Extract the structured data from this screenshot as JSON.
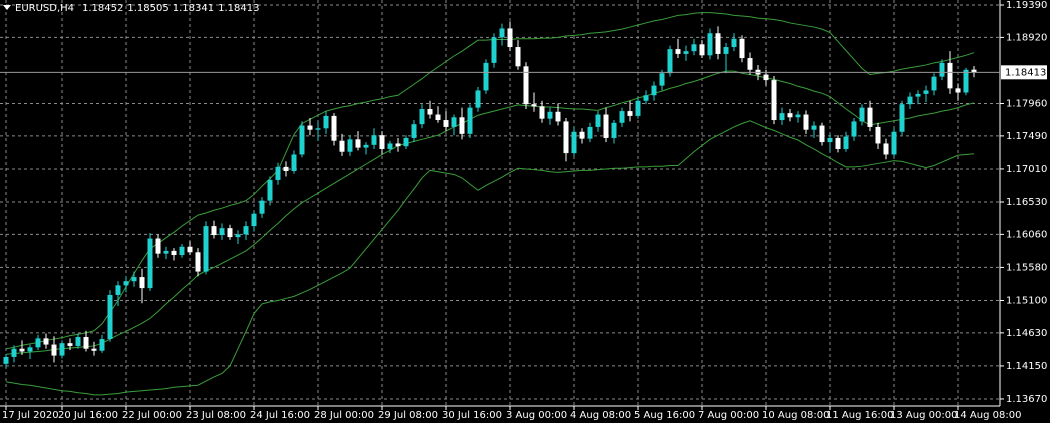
{
  "chart_data": {
    "type": "candlestick",
    "title": "EURUSD,H4",
    "categories": [
      "17 Jul 2020",
      null,
      null,
      null,
      null,
      null,
      null,
      "20 Jul 16:00",
      null,
      null,
      null,
      null,
      null,
      null,
      null,
      "22 Jul 00:00",
      null,
      null,
      null,
      null,
      null,
      null,
      null,
      "23 Jul 08:00",
      null,
      null,
      null,
      null,
      null,
      null,
      null,
      "24 Jul 16:00",
      null,
      null,
      null,
      null,
      null,
      null,
      null,
      "28 Jul 00:00",
      null,
      null,
      null,
      null,
      null,
      null,
      null,
      "29 Jul 08:00",
      null,
      null,
      null,
      null,
      null,
      null,
      null,
      "30 Jul 16:00",
      null,
      null,
      null,
      null,
      null,
      null,
      null,
      "3 Aug 00:00",
      null,
      null,
      null,
      null,
      null,
      null,
      null,
      "4 Aug 08:00",
      null,
      null,
      null,
      null,
      null,
      null,
      null,
      "5 Aug 16:00",
      null,
      null,
      null,
      null,
      null,
      null,
      null,
      "7 Aug 00:00",
      null,
      null,
      null,
      null,
      null,
      null,
      null,
      "10 Aug 08:00",
      null,
      null,
      null,
      null,
      null,
      null,
      null,
      "11 Aug 16:00",
      null,
      null,
      null,
      null,
      null,
      null,
      null,
      "13 Aug 00:00",
      null,
      null,
      null,
      null,
      null,
      null,
      null,
      "14 Aug 08:00",
      null,
      null
    ],
    "open": [
      1.1418,
      1.1428,
      1.144,
      1.1436,
      1.1442,
      1.1455,
      1.1446,
      1.143,
      1.1448,
      1.1444,
      1.1457,
      1.144,
      1.1437,
      1.1454,
      1.1518,
      1.1532,
      1.1538,
      1.1544,
      1.1528,
      1.16,
      1.1578,
      1.1582,
      1.1576,
      1.1588,
      1.158,
      1.1552,
      1.1618,
      1.1605,
      1.1615,
      1.1602,
      1.1606,
      1.1618,
      1.1636,
      1.1655,
      1.1685,
      1.1704,
      1.1698,
      1.1722,
      1.1764,
      1.1758,
      1.176,
      1.1778,
      1.1742,
      1.1726,
      1.1744,
      1.1732,
      1.1736,
      1.175,
      1.173,
      1.1738,
      1.1734,
      1.1746,
      1.1766,
      1.1788,
      1.178,
      1.1772,
      1.1762,
      1.1776,
      1.1752,
      1.179,
      1.1815,
      1.1855,
      1.1892,
      1.1905,
      1.1878,
      1.185,
      1.1795,
      1.1792,
      1.1774,
      1.1784,
      1.177,
      1.1724,
      1.1755,
      1.1745,
      1.1762,
      1.178,
      1.1746,
      1.1768,
      1.1785,
      1.1778,
      1.18,
      1.1808,
      1.1822,
      1.184,
      1.1875,
      1.1868,
      1.1872,
      1.1882,
      1.1866,
      1.1898,
      1.1868,
      1.1878,
      1.189,
      1.1862,
      1.1845,
      1.1838,
      1.183,
      1.1772,
      1.1782,
      1.1776,
      1.178,
      1.1758,
      1.1764,
      1.174,
      1.1746,
      1.173,
      1.1748,
      1.177,
      1.179,
      1.1762,
      1.1738,
      1.1722,
      1.1755,
      1.1795,
      1.1806,
      1.181,
      1.1815,
      1.1835,
      1.1855,
      1.1818,
      1.1812,
      1.18452
    ],
    "high": [
      1.1432,
      1.1445,
      1.1452,
      1.1446,
      1.146,
      1.1462,
      1.1458,
      1.1452,
      1.1455,
      1.1462,
      1.1466,
      1.145,
      1.146,
      1.1525,
      1.1538,
      1.1545,
      1.1552,
      1.1556,
      1.1608,
      1.1606,
      1.1588,
      1.1586,
      1.1592,
      1.1596,
      1.1586,
      1.1625,
      1.1626,
      1.1622,
      1.162,
      1.1612,
      1.1625,
      1.164,
      1.166,
      1.169,
      1.171,
      1.1712,
      1.1728,
      1.177,
      1.1775,
      1.177,
      1.1785,
      1.1782,
      1.1752,
      1.175,
      1.1756,
      1.174,
      1.176,
      1.1756,
      1.1742,
      1.1746,
      1.175,
      1.1772,
      1.1795,
      1.18,
      1.1792,
      1.1785,
      1.178,
      1.179,
      1.1795,
      1.182,
      1.186,
      1.1898,
      1.1912,
      1.1915,
      1.1888,
      1.1856,
      1.1812,
      1.18,
      1.179,
      1.1796,
      1.1775,
      1.1762,
      1.176,
      1.1768,
      1.1785,
      1.179,
      1.1772,
      1.179,
      1.18,
      1.1805,
      1.1815,
      1.1828,
      1.1845,
      1.188,
      1.189,
      1.188,
      1.189,
      1.1888,
      1.1905,
      1.1908,
      1.1884,
      1.1898,
      1.1895,
      1.187,
      1.1852,
      1.1845,
      1.1836,
      1.179,
      1.1788,
      1.1785,
      1.1786,
      1.177,
      1.1768,
      1.1752,
      1.175,
      1.1755,
      1.1775,
      1.1795,
      1.18,
      1.1768,
      1.1745,
      1.176,
      1.18,
      1.1812,
      1.1815,
      1.1822,
      1.184,
      1.186,
      1.1872,
      1.1825,
      1.1848,
      1.18505
    ],
    "low": [
      1.1412,
      1.142,
      1.1431,
      1.1425,
      1.1438,
      1.144,
      1.142,
      1.1426,
      1.1438,
      1.144,
      1.1436,
      1.143,
      1.1434,
      1.145,
      1.1502,
      1.1522,
      1.153,
      1.1506,
      1.1524,
      1.1572,
      1.157,
      1.1568,
      1.1572,
      1.1576,
      1.1545,
      1.1548,
      1.16,
      1.1598,
      1.1598,
      1.1592,
      1.1598,
      1.161,
      1.163,
      1.1648,
      1.1678,
      1.169,
      1.1694,
      1.1718,
      1.175,
      1.1742,
      1.1752,
      1.1735,
      1.172,
      1.172,
      1.1728,
      1.1722,
      1.173,
      1.1722,
      1.1724,
      1.1726,
      1.173,
      1.174,
      1.176,
      1.1774,
      1.1768,
      1.1756,
      1.175,
      1.1744,
      1.1746,
      1.1784,
      1.181,
      1.1848,
      1.188,
      1.1872,
      1.1845,
      1.1788,
      1.1784,
      1.1768,
      1.1765,
      1.1764,
      1.1712,
      1.172,
      1.1738,
      1.174,
      1.1755,
      1.174,
      1.1738,
      1.1762,
      1.177,
      1.1774,
      1.1795,
      1.18,
      1.1815,
      1.1835,
      1.1862,
      1.1858,
      1.1866,
      1.1862,
      1.186,
      1.186,
      1.184,
      1.1872,
      1.1856,
      1.1838,
      1.183,
      1.1822,
      1.1766,
      1.1765,
      1.177,
      1.1768,
      1.1752,
      1.1746,
      1.1735,
      1.1726,
      1.1725,
      1.1726,
      1.1742,
      1.1764,
      1.1756,
      1.173,
      1.1715,
      1.1718,
      1.175,
      1.1788,
      1.1795,
      1.1798,
      1.1808,
      1.183,
      1.181,
      1.18,
      1.1808,
      1.18341
    ],
    "close": [
      1.1428,
      1.144,
      1.1436,
      1.1442,
      1.1455,
      1.1446,
      1.143,
      1.1448,
      1.1444,
      1.1457,
      1.144,
      1.1437,
      1.1454,
      1.1518,
      1.1532,
      1.1538,
      1.1544,
      1.1528,
      1.16,
      1.1578,
      1.1582,
      1.1576,
      1.1588,
      1.158,
      1.1552,
      1.1618,
      1.1605,
      1.1615,
      1.1602,
      1.1606,
      1.1618,
      1.1636,
      1.1655,
      1.1685,
      1.1704,
      1.1698,
      1.1722,
      1.1764,
      1.1758,
      1.176,
      1.1778,
      1.1742,
      1.1726,
      1.1744,
      1.1732,
      1.1736,
      1.175,
      1.173,
      1.1738,
      1.1734,
      1.1746,
      1.1766,
      1.1788,
      1.178,
      1.1772,
      1.1762,
      1.1776,
      1.1752,
      1.179,
      1.1815,
      1.1855,
      1.1892,
      1.1905,
      1.1878,
      1.185,
      1.1795,
      1.1792,
      1.1774,
      1.1784,
      1.177,
      1.1724,
      1.1755,
      1.1745,
      1.1762,
      1.178,
      1.1746,
      1.1768,
      1.1785,
      1.1778,
      1.18,
      1.1808,
      1.1822,
      1.184,
      1.1875,
      1.1868,
      1.1872,
      1.1882,
      1.1866,
      1.1898,
      1.1868,
      1.1878,
      1.189,
      1.1862,
      1.1845,
      1.1838,
      1.183,
      1.1772,
      1.1782,
      1.1776,
      1.178,
      1.1758,
      1.1764,
      1.174,
      1.1746,
      1.173,
      1.1748,
      1.177,
      1.179,
      1.1762,
      1.1738,
      1.1722,
      1.1755,
      1.1795,
      1.1806,
      1.181,
      1.1815,
      1.1835,
      1.1855,
      1.1818,
      1.1812,
      1.1845,
      1.18413
    ],
    "up_color": "#1fd1cf",
    "down_color": "#ffffff",
    "series": [
      {
        "color": "#3a9f3a",
        "values": [
          1.144,
          1.1442,
          1.1445,
          1.1447,
          1.1449,
          1.1452,
          1.1454,
          1.1456,
          1.1459,
          1.1461,
          1.1463,
          1.1466,
          1.1476,
          1.1493,
          1.151,
          1.153,
          1.1549,
          1.1568,
          1.1585,
          1.1593,
          1.1601,
          1.1609,
          1.1618,
          1.1626,
          1.1634,
          1.1637,
          1.1641,
          1.1644,
          1.1648,
          1.1651,
          1.1655,
          1.1664,
          1.1676,
          1.1687,
          1.1699,
          1.1725,
          1.1751,
          1.1767,
          1.1773,
          1.1779,
          1.1785,
          1.1788,
          1.1791,
          1.1793,
          1.1796,
          1.1798,
          1.1801,
          1.1803,
          1.1806,
          1.1808,
          1.1816,
          1.1824,
          1.1832,
          1.1841,
          1.1849,
          1.1857,
          1.1865,
          1.1872,
          1.188,
          1.1888,
          1.1888,
          1.1889,
          1.1889,
          1.1889,
          1.189,
          1.189,
          1.189,
          1.1891,
          1.1891,
          1.1892,
          1.1894,
          1.1895,
          1.1896,
          1.1898,
          1.1899,
          1.19,
          1.1902,
          1.1904,
          1.1907,
          1.191,
          1.1913,
          1.1916,
          1.1918,
          1.1921,
          1.1924,
          1.1925,
          1.1927,
          1.1928,
          1.1928,
          1.1927,
          1.1926,
          1.1924,
          1.1923,
          1.1922,
          1.192,
          1.1919,
          1.1918,
          1.1916,
          1.1913,
          1.1911,
          1.1909,
          1.1907,
          1.1904,
          1.1899,
          1.1886,
          1.1873,
          1.186,
          1.1847,
          1.1838,
          1.184,
          1.1841,
          1.1843,
          1.1846,
          1.1848,
          1.185,
          1.1852,
          1.1855,
          1.1857,
          1.186,
          1.1863,
          1.1866,
          1.187
        ]
      },
      {
        "color": "#3a9f3a",
        "values": [
          1.1432,
          1.1433,
          1.1434,
          1.1435,
          1.1436,
          1.1437,
          1.1439,
          1.144,
          1.1441,
          1.1442,
          1.1443,
          1.1444,
          1.1448,
          1.1454,
          1.146,
          1.1465,
          1.1471,
          1.1477,
          1.1484,
          1.1494,
          1.1505,
          1.1515,
          1.1526,
          1.1536,
          1.1547,
          1.1553,
          1.1558,
          1.1564,
          1.157,
          1.1576,
          1.1582,
          1.1591,
          1.1601,
          1.1612,
          1.1622,
          1.1633,
          1.1643,
          1.1652,
          1.1659,
          1.1666,
          1.1673,
          1.168,
          1.1687,
          1.1694,
          1.1701,
          1.1708,
          1.1715,
          1.1722,
          1.1728,
          1.1735,
          1.1738,
          1.1741,
          1.1744,
          1.1747,
          1.175,
          1.1756,
          1.1762,
          1.1767,
          1.1773,
          1.1779,
          1.1782,
          1.1785,
          1.1788,
          1.1791,
          1.1794,
          1.1793,
          1.1792,
          1.1791,
          1.1791,
          1.179,
          1.1789,
          1.1788,
          1.1788,
          1.1787,
          1.1786,
          1.179,
          1.1793,
          1.1797,
          1.18,
          1.1804,
          1.1807,
          1.1811,
          1.1814,
          1.1818,
          1.1821,
          1.1825,
          1.1828,
          1.1832,
          1.1836,
          1.184,
          1.1843,
          1.1843,
          1.184,
          1.1838,
          1.1836,
          1.1833,
          1.1831,
          1.1828,
          1.1825,
          1.1821,
          1.1818,
          1.1814,
          1.1811,
          1.1806,
          1.1797,
          1.1788,
          1.178,
          1.1771,
          1.1765,
          1.1767,
          1.1769,
          1.1771,
          1.1773,
          1.1775,
          1.1778,
          1.178,
          1.1782,
          1.1785,
          1.1787,
          1.179,
          1.1794,
          1.1797
        ]
      },
      {
        "color": "#3a9f3a",
        "values": [
          1.1392,
          1.139,
          1.1388,
          1.1387,
          1.1385,
          1.1383,
          1.1381,
          1.1379,
          1.1378,
          1.1376,
          1.1375,
          1.1373,
          1.1373,
          1.1374,
          1.1375,
          1.1377,
          1.1378,
          1.1379,
          1.138,
          1.1381,
          1.1382,
          1.1384,
          1.1385,
          1.1386,
          1.1387,
          1.1393,
          1.1399,
          1.1404,
          1.1415,
          1.144,
          1.1465,
          1.1491,
          1.1505,
          1.1508,
          1.151,
          1.1513,
          1.1516,
          1.1521,
          1.1526,
          1.1532,
          1.1538,
          1.1544,
          1.155,
          1.1557,
          1.1571,
          1.1585,
          1.1599,
          1.1613,
          1.1627,
          1.1641,
          1.1657,
          1.1672,
          1.1688,
          1.1699,
          1.1697,
          1.1695,
          1.1693,
          1.1688,
          1.1679,
          1.167,
          1.1677,
          1.1683,
          1.1689,
          1.1696,
          1.1702,
          1.1701,
          1.17,
          1.1699,
          1.1697,
          1.1696,
          1.1697,
          1.1698,
          1.1699,
          1.1699,
          1.17,
          1.1701,
          1.1702,
          1.1702,
          1.1703,
          1.1704,
          1.1704,
          1.1705,
          1.1705,
          1.1706,
          1.1706,
          1.1716,
          1.1726,
          1.1735,
          1.1744,
          1.175,
          1.1756,
          1.1762,
          1.1767,
          1.1771,
          1.1766,
          1.1761,
          1.1757,
          1.1752,
          1.1747,
          1.1743,
          1.1736,
          1.173,
          1.1723,
          1.1717,
          1.171,
          1.1704,
          1.1704,
          1.1705,
          1.1707,
          1.1709,
          1.1711,
          1.1713,
          1.1712,
          1.1709,
          1.1706,
          1.1703,
          1.1706,
          1.1711,
          1.1716,
          1.1721,
          1.1722,
          1.1723
        ]
      }
    ],
    "ylim": [
      1.13568,
      1.19463
    ],
    "yticks": [
      {
        "value": 1.1939,
        "label": "1.19390"
      },
      {
        "value": 1.1892,
        "label": "1.18920"
      },
      {
        "value": 1.1796,
        "label": "1.17960"
      },
      {
        "value": 1.1749,
        "label": "1.17490"
      },
      {
        "value": 1.1701,
        "label": "1.17010"
      },
      {
        "value": 1.1653,
        "label": "1.16530"
      },
      {
        "value": 1.1606,
        "label": "1.16060"
      },
      {
        "value": 1.1558,
        "label": "1.15580"
      },
      {
        "value": 1.151,
        "label": "1.15100"
      },
      {
        "value": 1.1463,
        "label": "1.14630"
      },
      {
        "value": 1.1415,
        "label": "1.14150"
      },
      {
        "value": 1.1367,
        "label": "1.13670"
      }
    ],
    "grid": true
  }
}
